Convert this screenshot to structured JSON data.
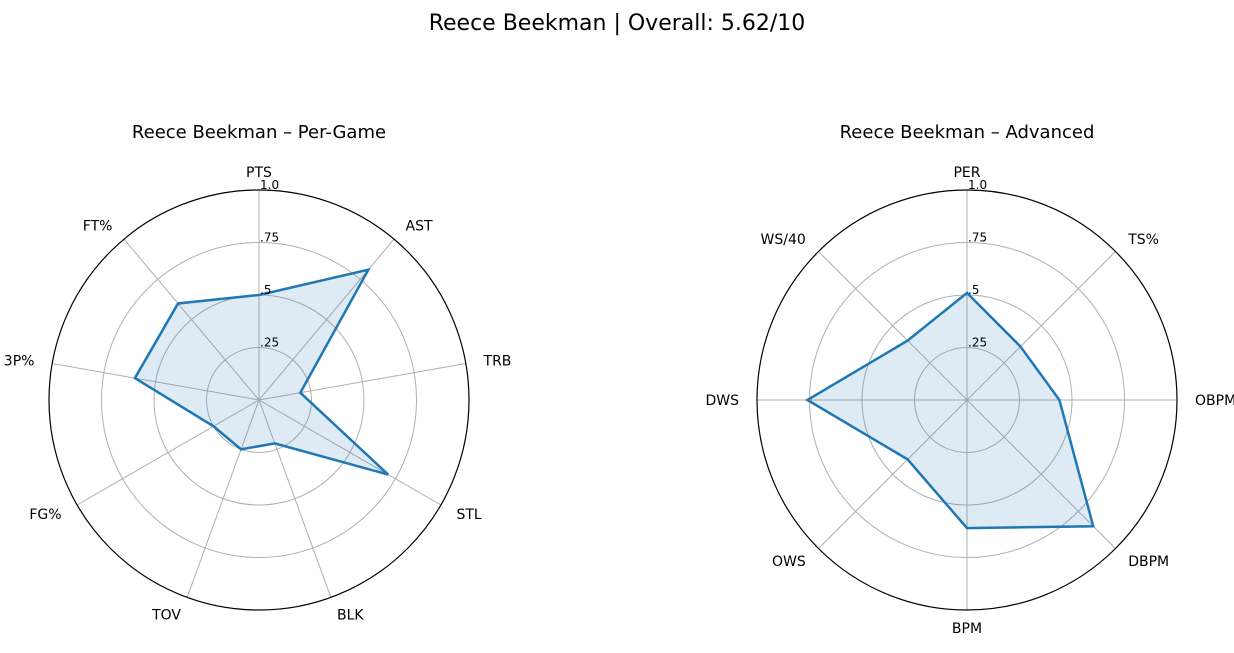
{
  "suptitle": "Reece Beekman | Overall: 5.62/10",
  "chart_data": [
    {
      "type": "radar",
      "title": "Reece Beekman – Per-Game",
      "categories": [
        "PTS",
        "AST",
        "TRB",
        "STL",
        "BLK",
        "TOV",
        "FG%",
        "3P%",
        "FT%"
      ],
      "values": [
        0.5,
        0.81,
        0.2,
        0.71,
        0.22,
        0.25,
        0.25,
        0.6,
        0.6
      ],
      "rlim": [
        0,
        1
      ],
      "rticks": [
        0.25,
        0.5,
        0.75,
        1.0
      ],
      "rtick_labels": [
        ".25",
        ".5",
        ".75",
        "1.0"
      ],
      "grid": true,
      "colors": {
        "line": "#1f77b4",
        "fill": "#1f77b4"
      }
    },
    {
      "type": "radar",
      "title": "Reece Beekman – Advanced",
      "categories": [
        "PER",
        "TS%",
        "OBPM",
        "DBPM",
        "BPM",
        "OWS",
        "DWS",
        "WS/40"
      ],
      "values": [
        0.51,
        0.36,
        0.44,
        0.85,
        0.61,
        0.4,
        0.76,
        0.4
      ],
      "rlim": [
        0,
        1
      ],
      "rticks": [
        0.25,
        0.5,
        0.75,
        1.0
      ],
      "rtick_labels": [
        ".25",
        ".5",
        ".75",
        "1.0"
      ],
      "grid": true,
      "colors": {
        "line": "#1f77b4",
        "fill": "#1f77b4"
      }
    }
  ]
}
